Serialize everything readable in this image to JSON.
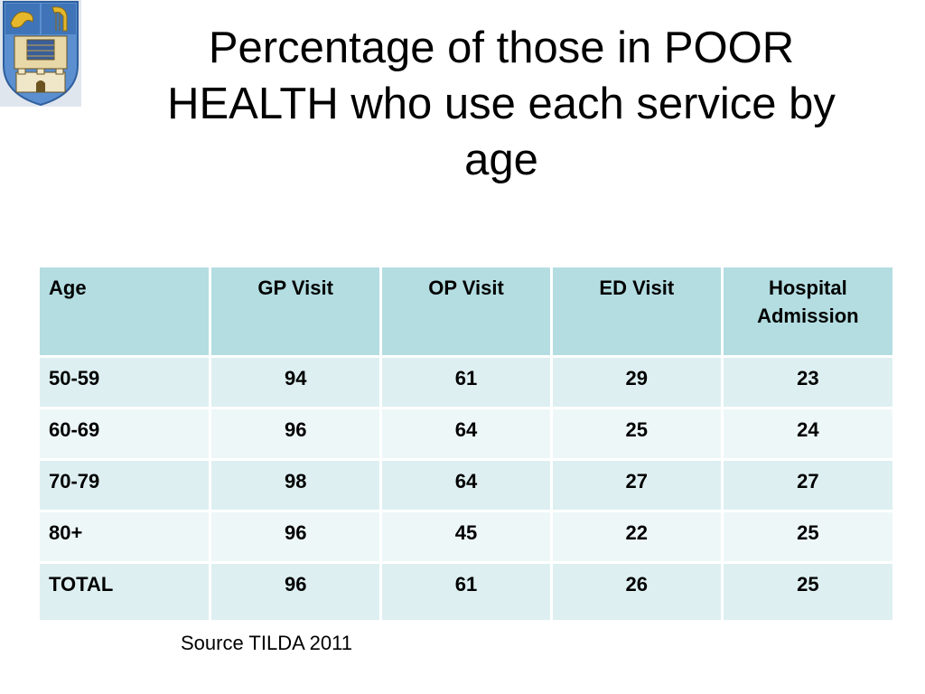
{
  "slide": {
    "title_lines": [
      "Percentage of those in POOR",
      "HEALTH who use each service by",
      "age"
    ],
    "source": "Source TILDA 2011"
  },
  "table": {
    "headers": [
      "Age",
      "GP Visit",
      "OP Visit",
      "ED Visit",
      "Hospital Admission"
    ],
    "rows": [
      [
        "50-59",
        "94",
        "61",
        "29",
        "23"
      ],
      [
        "60-69",
        "96",
        "64",
        "25",
        "24"
      ],
      [
        "70-79",
        "98",
        "64",
        "27",
        "27"
      ],
      [
        "80+",
        "96",
        "45",
        "22",
        "25"
      ],
      [
        "TOTAL",
        "96",
        "61",
        "26",
        "25"
      ]
    ]
  },
  "colors": {
    "header_bg": "#b3dde1",
    "row_odd_bg": "#ddeff1",
    "row_even_bg": "#eef7f8",
    "crest_blue": "#4f86c6",
    "crest_gold": "#e5b82c"
  },
  "icons": {
    "crest": "coat-of-arms-icon"
  }
}
